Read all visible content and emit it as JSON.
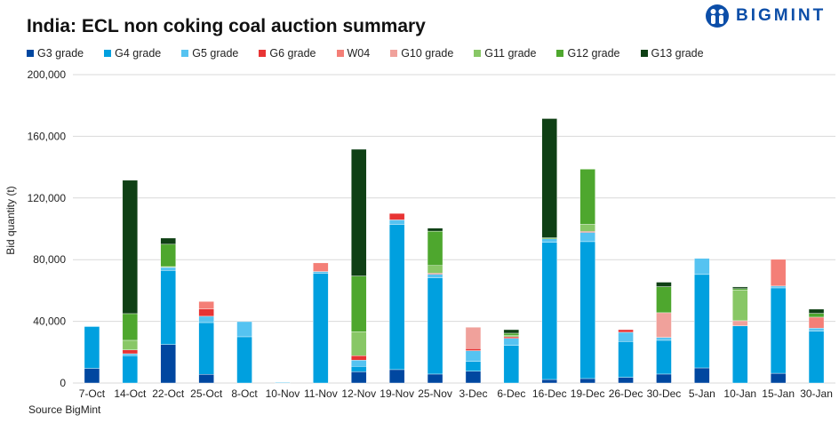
{
  "chart_data": {
    "type": "bar",
    "stacked": true,
    "title": "India: ECL non coking coal auction summary",
    "ylabel": "Bid quantity (t)",
    "xlabel": "",
    "ylim": [
      0,
      200000
    ],
    "yticks": [
      "0",
      "40,000",
      "80,000",
      "120,000",
      "160,000",
      "200,000"
    ],
    "ytick_values": [
      0,
      40000,
      80000,
      120000,
      160000,
      200000
    ],
    "grid": true,
    "legend_position": "top",
    "categories": [
      "7-Oct",
      "14-Oct",
      "22-Oct",
      "25-Oct",
      "8-Oct",
      "10-Nov",
      "11-Nov",
      "12-Nov",
      "19-Nov",
      "25-Nov",
      "3-Dec",
      "6-Dec",
      "16-Dec",
      "19-Dec",
      "26-Dec",
      "30-Dec",
      "5-Jan",
      "10-Jan",
      "15-Jan",
      "30-Jan"
    ],
    "series": [
      {
        "name": "G3 grade",
        "color": "#0047a0",
        "values": [
          9500,
          0,
          25000,
          5600,
          0,
          0,
          0,
          7300,
          8700,
          5800,
          7700,
          0,
          2300,
          2900,
          3700,
          5800,
          9800,
          0,
          6300,
          0
        ]
      },
      {
        "name": "G4 grade",
        "color": "#00a0df",
        "values": [
          27000,
          17700,
          48000,
          33600,
          30000,
          0,
          71200,
          3500,
          94200,
          62500,
          6300,
          24400,
          88900,
          88800,
          23200,
          21900,
          60600,
          37100,
          55400,
          33700
        ]
      },
      {
        "name": "G5 grade",
        "color": "#56c3f1",
        "values": [
          500,
          1300,
          2000,
          4100,
          9800,
          500,
          1100,
          4000,
          2900,
          2300,
          7000,
          4600,
          2300,
          6000,
          6000,
          1900,
          10400,
          0,
          1200,
          1900
        ]
      },
      {
        "name": "G6 grade",
        "color": "#e83434",
        "values": [
          0,
          2500,
          0,
          4700,
          0,
          0,
          0,
          2900,
          4200,
          600,
          1300,
          1000,
          0,
          600,
          1700,
          0,
          0,
          0,
          0,
          0
        ]
      },
      {
        "name": "W04",
        "color": "#f47f77",
        "values": [
          0,
          0,
          0,
          4900,
          0,
          0,
          5600,
          0,
          0,
          0,
          0,
          0,
          0,
          0,
          0,
          0,
          0,
          0,
          17300,
          7100
        ]
      },
      {
        "name": "G10 grade",
        "color": "#f0a19b",
        "values": [
          0,
          0,
          0,
          0,
          0,
          0,
          0,
          0,
          0,
          0,
          13900,
          0,
          0,
          0,
          0,
          16000,
          0,
          3300,
          0,
          0
        ]
      },
      {
        "name": "G11 grade",
        "color": "#88c766",
        "values": [
          0,
          6200,
          500,
          0,
          0,
          0,
          0,
          15600,
          0,
          5000,
          0,
          800,
          0,
          4600,
          0,
          0,
          0,
          20000,
          0,
          0
        ]
      },
      {
        "name": "G12 grade",
        "color": "#4ea72e",
        "values": [
          0,
          17300,
          14500,
          0,
          0,
          0,
          0,
          36100,
          0,
          22300,
          0,
          1500,
          700,
          35800,
          0,
          16900,
          0,
          800,
          0,
          2500
        ]
      },
      {
        "name": "G13 grade",
        "color": "#0f4015",
        "values": [
          0,
          86500,
          4000,
          0,
          0,
          0,
          0,
          82200,
          0,
          1900,
          0,
          2300,
          77300,
          0,
          0,
          2900,
          0,
          1100,
          0,
          2700
        ]
      }
    ]
  },
  "brand": {
    "logo_text": "BIGMINT"
  },
  "source": "Source BigMint"
}
